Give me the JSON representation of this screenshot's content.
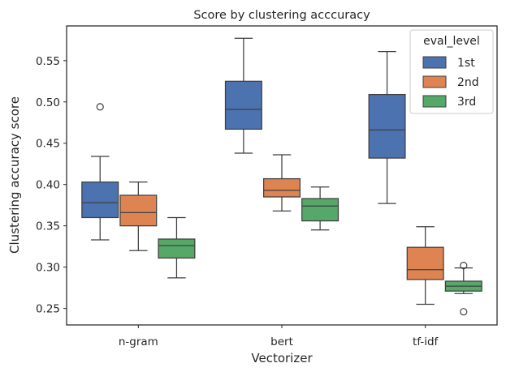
{
  "chart_data": {
    "type": "box",
    "title": "Score by clustering acccuracy",
    "xlabel": "Vectorizer",
    "ylabel": "Clustering accuracy score",
    "categories": [
      "n-gram",
      "bert",
      "tf-idf"
    ],
    "ylim": [
      0.23,
      0.592
    ],
    "yticks": [
      0.25,
      0.3,
      0.35,
      0.4,
      0.45,
      0.5,
      0.55
    ],
    "ytick_labels": [
      "0.25",
      "0.30",
      "0.35",
      "0.40",
      "0.45",
      "0.50",
      "0.55"
    ],
    "grid": false,
    "legend": {
      "title": "eval_level",
      "position": "top-right"
    },
    "series": [
      {
        "name": "1st",
        "color": "#4c72b0",
        "boxes": [
          {
            "whislo": 0.333,
            "q1": 0.36,
            "med": 0.378,
            "q3": 0.403,
            "whishi": 0.434,
            "fliers": [
              0.494
            ]
          },
          {
            "whislo": 0.438,
            "q1": 0.467,
            "med": 0.491,
            "q3": 0.525,
            "whishi": 0.577,
            "fliers": []
          },
          {
            "whislo": 0.377,
            "q1": 0.432,
            "med": 0.466,
            "q3": 0.509,
            "whishi": 0.561,
            "fliers": []
          }
        ]
      },
      {
        "name": "2nd",
        "color": "#dd8452",
        "boxes": [
          {
            "whislo": 0.32,
            "q1": 0.35,
            "med": 0.366,
            "q3": 0.387,
            "whishi": 0.403,
            "fliers": []
          },
          {
            "whislo": 0.368,
            "q1": 0.385,
            "med": 0.393,
            "q3": 0.407,
            "whishi": 0.436,
            "fliers": []
          },
          {
            "whislo": 0.255,
            "q1": 0.285,
            "med": 0.297,
            "q3": 0.324,
            "whishi": 0.349,
            "fliers": []
          }
        ]
      },
      {
        "name": "3rd",
        "color": "#55a868",
        "boxes": [
          {
            "whislo": 0.287,
            "q1": 0.311,
            "med": 0.326,
            "q3": 0.334,
            "whishi": 0.36,
            "fliers": []
          },
          {
            "whislo": 0.345,
            "q1": 0.356,
            "med": 0.374,
            "q3": 0.383,
            "whishi": 0.397,
            "fliers": []
          },
          {
            "whislo": 0.268,
            "q1": 0.271,
            "med": 0.277,
            "q3": 0.283,
            "whishi": 0.299,
            "fliers": [
              0.302,
              0.246
            ]
          }
        ]
      }
    ]
  }
}
